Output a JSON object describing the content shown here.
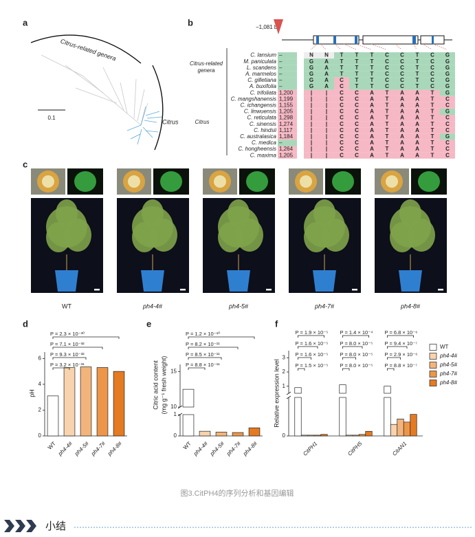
{
  "genotype_colors": [
    "#ffffff",
    "#f8d3ae",
    "#f3b47c",
    "#ed9649",
    "#e47a22"
  ],
  "panel_a": {
    "label": "a",
    "clade_related": "Citrus-related genera",
    "clade_citrus": "Citrus",
    "scale": "0.1"
  },
  "panel_b": {
    "label": "b",
    "promoter": "−1,081 bp",
    "groups": [
      [
        "Citrus-related",
        "genera"
      ],
      "Citrus"
    ],
    "rows": [
      {
        "species": "C. lansium",
        "count": "–",
        "seq": [
          "N",
          "N",
          "T",
          "T",
          "T",
          "C",
          "C",
          "T",
          "C",
          "G"
        ]
      },
      {
        "species": "M. paniculata",
        "count": "–",
        "seq": [
          "G",
          "A",
          "T",
          "T",
          "T",
          "C",
          "C",
          "T",
          "C",
          "G"
        ]
      },
      {
        "species": "L. scandens",
        "count": "–",
        "seq": [
          "G",
          "A",
          "T",
          "T",
          "T",
          "C",
          "C",
          "T",
          "C",
          "G"
        ]
      },
      {
        "species": "A. marmelos",
        "count": "–",
        "seq": [
          "G",
          "A",
          "T",
          "T",
          "T",
          "C",
          "C",
          "T",
          "C",
          "G"
        ]
      },
      {
        "species": "C. gilletiana",
        "count": "–",
        "seq": [
          "G",
          "A",
          "C",
          "T",
          "T",
          "C",
          "C",
          "T",
          "C",
          "G"
        ]
      },
      {
        "species": "A. buxifolia",
        "count": "–",
        "seq": [
          "G",
          "A",
          "C",
          "T",
          "T",
          "C",
          "C",
          "T",
          "C",
          "G"
        ]
      },
      {
        "species": "C. trifoliata",
        "count": "1,200",
        "seq": [
          "|",
          "|",
          "C",
          "C",
          "A",
          "T",
          "A",
          "A",
          "T",
          "G"
        ]
      },
      {
        "species": "C. mangshanensis",
        "count": "1,199",
        "seq": [
          "|",
          "|",
          "C",
          "C",
          "A",
          "T",
          "A",
          "A",
          "T",
          "C"
        ]
      },
      {
        "species": "C. ichangensis",
        "count": "1,155",
        "seq": [
          "|",
          "|",
          "C",
          "C",
          "A",
          "T",
          "A",
          "A",
          "T",
          "C"
        ]
      },
      {
        "species": "C. linwuensis",
        "count": "1,205",
        "seq": [
          "|",
          "|",
          "C",
          "C",
          "A",
          "T",
          "A",
          "A",
          "T",
          "G"
        ]
      },
      {
        "species": "C. reticulata",
        "count": "1,298",
        "seq": [
          "|",
          "|",
          "C",
          "C",
          "A",
          "T",
          "A",
          "A",
          "T",
          "C"
        ]
      },
      {
        "species": "C. sinensis",
        "count": "1,274",
        "seq": [
          "|",
          "|",
          "C",
          "C",
          "A",
          "T",
          "A",
          "A",
          "T",
          "C"
        ]
      },
      {
        "species": "C. hindsii",
        "count": "1,117",
        "seq": [
          "|",
          "|",
          "C",
          "C",
          "A",
          "T",
          "A",
          "A",
          "T",
          "C"
        ]
      },
      {
        "species": "C. australasica",
        "count": "1,184",
        "seq": [
          "|",
          "|",
          "C",
          "C",
          "A",
          "T",
          "A",
          "A",
          "T",
          "G"
        ]
      },
      {
        "species": "C. medica",
        "count": "–",
        "seq": [
          "|",
          "|",
          "C",
          "C",
          "A",
          "T",
          "A",
          "A",
          "T",
          "C"
        ]
      },
      {
        "species": "C. hongheensis",
        "count": "1,264",
        "seq": [
          "|",
          "|",
          "C",
          "C",
          "A",
          "T",
          "A",
          "A",
          "T",
          "C"
        ]
      },
      {
        "species": "C. maxima",
        "count": "1,205",
        "seq": [
          "|",
          "|",
          "C",
          "C",
          "A",
          "T",
          "A",
          "A",
          "T",
          "C"
        ]
      }
    ]
  },
  "panel_c": {
    "label": "c",
    "lines": [
      "WT",
      "ph4-4#",
      "ph4-5#",
      "ph4-7#",
      "ph4-8#"
    ]
  },
  "panel_d": {
    "label": "d",
    "y_label": "pH",
    "categories": [
      "WT",
      "ph4-4#",
      "ph4-5#",
      "ph4-7#",
      "ph4-8#"
    ],
    "values": [
      3.1,
      5.3,
      5.35,
      5.3,
      5.0
    ],
    "y_axis": [
      {
        "ylim": [
          0,
          6.5
        ],
        "yticks": [
          0,
          2,
          4,
          6
        ]
      }
    ],
    "pvalues": [
      "P = 2.3 × 10⁻³⁰",
      "P = 7.1 × 10⁻³²",
      "P = 9.3 × 10⁻³²",
      "P = 3.2 × 10⁻³¹"
    ]
  },
  "panel_e": {
    "label": "e",
    "y_label": [
      "Citric acid content",
      "(mg g⁻¹ fresh weight)"
    ],
    "categories": [
      "WT",
      "ph4-4#",
      "ph4-5#",
      "ph4-7#",
      "ph4-8#"
    ],
    "values": [
      12.5,
      0.22,
      0.18,
      0.16,
      0.38
    ],
    "y_axis": [
      {
        "ylim": [
          0,
          1
        ],
        "yticks": [
          0,
          1
        ]
      },
      {
        "ylim": [
          10,
          16
        ],
        "yticks": [
          10,
          15
        ]
      }
    ],
    "pvalues": [
      "P = 1.2 × 10⁻¹⁰",
      "P = 8.2 × 10⁻¹¹",
      "P = 8.5 × 10⁻¹¹",
      "P = 8.8 × 10⁻¹¹"
    ]
  },
  "panel_f": {
    "label": "f",
    "y_label": "Relative expression level",
    "genes": [
      "CitPH1",
      "CitPH5",
      "CitAN1"
    ],
    "series": [
      {
        "name": "WT",
        "values": [
          0.9,
          1.1,
          1.0
        ]
      },
      {
        "name": "ph4-4#",
        "values": [
          0.01,
          0.01,
          0.15
        ]
      },
      {
        "name": "ph4-5#",
        "values": [
          0.01,
          0.01,
          0.22
        ]
      },
      {
        "name": "ph4-7#",
        "values": [
          0.01,
          0.02,
          0.18
        ]
      },
      {
        "name": "ph4-8#",
        "values": [
          0.02,
          0.06,
          0.28
        ]
      }
    ],
    "y_axis": [
      {
        "ylim": [
          0,
          0.5
        ],
        "yticks": [
          0
        ]
      },
      {
        "ylim": [
          0.5,
          3.5
        ],
        "yticks": [
          1,
          2,
          3
        ]
      }
    ],
    "pvalues": [
      [
        "P = 1.9 × 10⁻⁵",
        "P = 1.6 × 10⁻⁵",
        "P = 1.6 × 10⁻⁵",
        "P = 1.5 × 10⁻⁵"
      ],
      [
        "P = 1.4 × 10⁻⁴",
        "P = 8.0 × 10⁻⁵",
        "P = 8.0 × 10⁻⁵",
        "P = 8.0 × 10⁻⁵"
      ],
      [
        "P = 6.8 × 10⁻⁶",
        "P = 9.4 × 10⁻⁷",
        "P = 2.9 × 10⁻⁶",
        "P = 8.8 × 10⁻⁷"
      ]
    ]
  },
  "caption": "图3.CitPH4的序列分析和基因编辑",
  "section": "小结"
}
